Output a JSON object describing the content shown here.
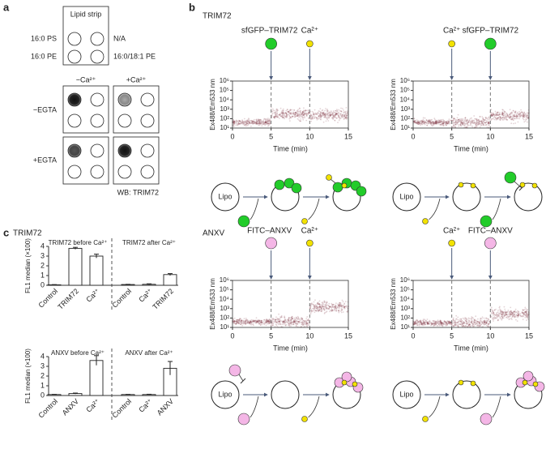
{
  "panel_a": {
    "letter": "a",
    "strip_title": "Lipid strip",
    "strip_left": [
      "16:0 PS",
      "16:0 PE"
    ],
    "strip_right": [
      "N/A",
      "16:0/18:1 PE"
    ],
    "col_headers": [
      "−Ca²⁺",
      "+Ca²⁺"
    ],
    "row_headers": [
      "−EGTA",
      "+EGTA"
    ],
    "wb": "WB: TRIM72"
  },
  "panel_b": {
    "letter": "b",
    "type": "scatter",
    "xlabel": "Time (min)",
    "ylabel": "Ex488/Em533 nm",
    "xlim": [
      0,
      15
    ],
    "xticks": [
      0,
      5,
      10,
      15
    ],
    "ylim": [
      10,
      1000000
    ],
    "log_y": true,
    "yticks": [
      {
        "value": 10,
        "label": "10¹"
      },
      {
        "value": 100,
        "label": "10²"
      },
      {
        "value": 1000,
        "label": "10³"
      },
      {
        "value": 10000,
        "label": "10⁴"
      },
      {
        "value": 100000,
        "label": "10⁵"
      },
      {
        "value": 1000000,
        "label": "10⁶"
      }
    ],
    "color": "#6b0f24",
    "lipo": "Lipo",
    "rows": [
      {
        "title": "TRIM72",
        "plots": [
          {
            "markers": [
              {
                "time": 5,
                "label": "sfGFP–TRIM72",
                "color": "#22cc2a",
                "kind": "protein"
              },
              {
                "time": 10,
                "label": "Ca²⁺",
                "color": "#f2e200",
                "kind": "ion"
              }
            ],
            "segment_medians": [
              40,
              300,
              250
            ]
          },
          {
            "markers": [
              {
                "time": 5,
                "label": "Ca²⁺",
                "color": "#f2e200",
                "kind": "ion"
              },
              {
                "time": 10,
                "label": "sfGFP–TRIM72",
                "color": "#22cc2a",
                "kind": "protein"
              }
            ],
            "segment_medians": [
              40,
              40,
              200
            ]
          }
        ]
      },
      {
        "title": "ANXV",
        "plots": [
          {
            "markers": [
              {
                "time": 5,
                "label": "FITC–ANXV",
                "color": "#f4b6e6",
                "kind": "protein"
              },
              {
                "time": 10,
                "label": "Ca²⁺",
                "color": "#f2e200",
                "kind": "ion"
              }
            ],
            "segment_medians": [
              40,
              40,
              1500
            ]
          },
          {
            "markers": [
              {
                "time": 5,
                "label": "Ca²⁺",
                "color": "#f2e200",
                "kind": "ion"
              },
              {
                "time": 10,
                "label": "FITC–ANXV",
                "color": "#f4b6e6",
                "kind": "protein"
              }
            ],
            "segment_medians": [
              30,
              30,
              250
            ]
          }
        ]
      }
    ]
  },
  "panel_c": {
    "letter": "c",
    "title": "TRIM72",
    "type": "bar",
    "ylabel": "FL1 median (×100)",
    "ylim": [
      0,
      4
    ],
    "yticks": [
      0,
      1,
      2,
      3,
      4
    ],
    "charts": [
      {
        "left_title": "TRIM72 before Ca²⁺",
        "right_title": "TRIM72 after Ca²⁺",
        "categories": [
          "Control",
          "TRIM72",
          "Ca²⁺",
          "Control",
          "Ca²⁺",
          "TRIM72"
        ],
        "values": [
          0.05,
          3.8,
          3.0,
          0.08,
          0.1,
          1.1
        ],
        "errors": [
          0.02,
          0.1,
          0.2,
          0.02,
          0.05,
          0.1
        ]
      },
      {
        "left_title": "ANXV before Ca²⁺",
        "right_title": "ANXV after Ca²⁺",
        "categories": [
          "Control",
          "ANXV",
          "Ca²⁺",
          "Control",
          "Ca²⁺",
          "ANXV"
        ],
        "values": [
          0.1,
          0.2,
          3.6,
          0.1,
          0.1,
          2.8
        ],
        "errors": [
          0.02,
          0.05,
          0.5,
          0.02,
          0.03,
          0.7
        ]
      }
    ]
  }
}
